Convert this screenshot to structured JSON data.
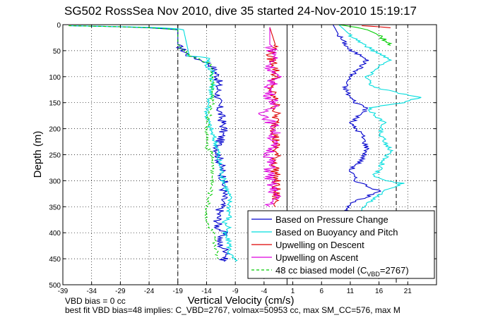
{
  "chart_data": {
    "type": "line",
    "title": "SG502 RossSea Nov 2010, dive 35 started 24-Nov-2010 15:19:17",
    "xlabel": "Vertical Velocity (cm/s)",
    "ylabel": "Depth (m)",
    "xlim": [
      -39,
      26
    ],
    "ylim": [
      500,
      0
    ],
    "x_ticks": [
      -39,
      -34,
      -29,
      -24,
      -19,
      -14,
      -9,
      -4,
      1,
      6,
      11,
      16,
      21
    ],
    "y_ticks": [
      0,
      50,
      100,
      150,
      200,
      250,
      300,
      350,
      400,
      450,
      500
    ],
    "grid": true,
    "y_axis_reversed": true,
    "legend_position": "bottom-right",
    "reference_lines": [
      {
        "x": -19,
        "style": "dashed"
      },
      {
        "x": 0,
        "style": "solid"
      },
      {
        "x": 19,
        "style": "dashed"
      }
    ],
    "series": [
      {
        "name": "Based on Pressure Change",
        "color": "#0000cc",
        "style": "solid",
        "x": [
          -38,
          -29,
          -24,
          -21,
          -19,
          -19,
          -17,
          -14,
          -13,
          -12,
          -12,
          -11,
          -12,
          -12,
          -11,
          -11,
          -12,
          -12,
          -12,
          -11,
          -12,
          -11,
          -10,
          -11,
          -11
        ],
        "y": [
          2,
          4,
          6,
          8,
          10,
          40,
          60,
          72,
          80,
          100,
          150,
          200,
          235,
          245,
          300,
          330,
          370,
          385,
          390,
          400,
          420,
          430,
          440,
          450,
          455
        ]
      },
      {
        "name": "Based on Buoyancy and Pitch",
        "color": "#00dddd",
        "style": "solid",
        "x": [
          -38,
          -28,
          -22,
          -19,
          -18,
          -17,
          -13,
          -14,
          -14,
          -13,
          -13,
          -14,
          -13,
          -12,
          -12,
          -11,
          -10,
          -10,
          -11,
          -10,
          -11,
          -10,
          -10,
          -9
        ],
        "y": [
          2,
          4,
          6,
          8,
          10,
          60,
          65,
          72,
          80,
          90,
          120,
          175,
          210,
          240,
          255,
          300,
          330,
          370,
          380,
          390,
          400,
          420,
          440,
          455
        ]
      },
      {
        "name": "Upwelling on Descent",
        "color": "#dd0000",
        "style": "solid",
        "x": [
          -3,
          -2,
          -3,
          -2,
          -2,
          -3,
          -2,
          -2,
          -2,
          -2,
          -2,
          -2
        ],
        "y": [
          5,
          40,
          60,
          80,
          100,
          120,
          150,
          200,
          250,
          300,
          330,
          350
        ]
      },
      {
        "name": "Upwelling on Ascent",
        "color": "#dd00dd",
        "style": "solid",
        "x": [
          -3,
          -3,
          -2,
          -3,
          -2,
          -3,
          -3,
          -2,
          -4,
          -2,
          -3,
          -3,
          -2,
          -3
        ],
        "y": [
          5,
          40,
          60,
          80,
          100,
          120,
          140,
          150,
          170,
          200,
          250,
          300,
          330,
          350
        ]
      },
      {
        "name": "48 cc biased model (C_VBD=2767)",
        "color": "#00cc00",
        "style": "dashed",
        "x": [
          -38,
          -29,
          -24,
          -21,
          -19,
          -19,
          -17,
          -14,
          -13,
          -13,
          -13,
          -14,
          -14,
          -13,
          -13,
          -14,
          -14,
          -13,
          -12
        ],
        "y": [
          2,
          4,
          6,
          8,
          10,
          40,
          60,
          72,
          80,
          100,
          150,
          200,
          235,
          245,
          300,
          360,
          380,
          400,
          450
        ]
      }
    ],
    "ascent_profiles": [
      {
        "series": "Based on Pressure Change",
        "color": "#0000cc",
        "x": [
          8,
          9,
          10,
          11,
          13,
          14,
          13,
          11,
          10,
          11,
          12,
          14,
          11,
          13,
          14,
          13,
          11,
          12,
          14,
          16,
          12,
          10,
          11
        ],
        "y": [
          0,
          20,
          35,
          50,
          60,
          65,
          80,
          100,
          120,
          140,
          150,
          160,
          190,
          210,
          240,
          260,
          280,
          300,
          310,
          320,
          340,
          355,
          360
        ]
      },
      {
        "series": "Based on Buoyancy and Pitch",
        "color": "#00dddd",
        "x": [
          9,
          11,
          13,
          15,
          17,
          18,
          16,
          14,
          15,
          23,
          20,
          14,
          17,
          16,
          18,
          17,
          16,
          15,
          17,
          20,
          17,
          14,
          13
        ],
        "y": [
          0,
          20,
          35,
          50,
          60,
          70,
          80,
          100,
          120,
          140,
          150,
          160,
          190,
          210,
          240,
          260,
          280,
          290,
          300,
          305,
          320,
          345,
          360
        ]
      },
      {
        "series": "48 cc biased model (C_VBD=2767)",
        "color": "#00cc00",
        "x": [
          9,
          12,
          14,
          16,
          17,
          18
        ],
        "y": [
          0,
          5,
          10,
          20,
          30,
          40
        ]
      },
      {
        "series": "Upwelling on Descent",
        "color": "#dd0000",
        "x": [
          13,
          16,
          18
        ],
        "y": [
          2,
          4,
          6
        ]
      }
    ]
  },
  "legend": {
    "items": [
      {
        "label": "Based on Pressure Change",
        "color": "#0000cc",
        "dashed": false
      },
      {
        "label": "Based on Buoyancy and Pitch",
        "color": "#00dddd",
        "dashed": false
      },
      {
        "label": "Upwelling on Descent",
        "color": "#dd0000",
        "dashed": false
      },
      {
        "label": "Upwelling on Ascent",
        "color": "#dd00dd",
        "dashed": false
      },
      {
        "label": "48 cc biased model (C",
        "sub": "VBD",
        "tail": "=2767)",
        "color": "#00cc00",
        "dashed": true
      }
    ]
  },
  "footer": {
    "line1": "VBD bias = 0 cc",
    "line2": "best fit VBD bias=48 implies: C_VBD=2767, volmax=50953 cc, max SM_CC=576, max M"
  }
}
